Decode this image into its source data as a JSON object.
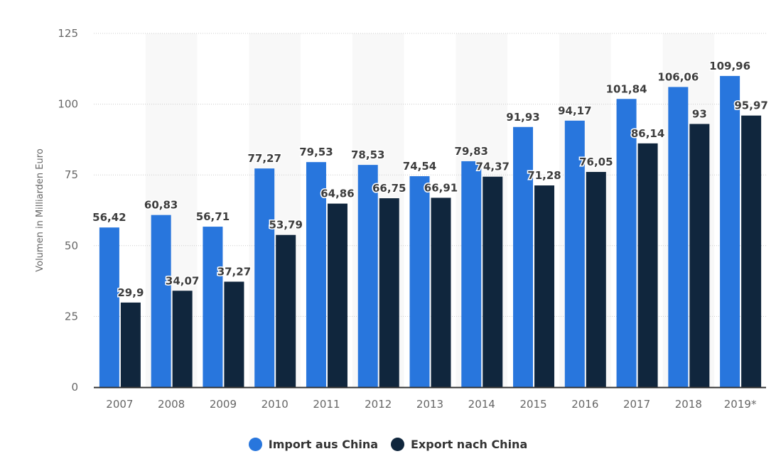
{
  "chart_data": {
    "type": "bar",
    "title": "",
    "xlabel": "",
    "ylabel": "Volumen in Milliarden Euro",
    "ylim": [
      0,
      125
    ],
    "yticks": [
      0,
      25,
      50,
      75,
      100,
      125
    ],
    "grid": true,
    "legend_position": "bottom",
    "categories": [
      "2007",
      "2008",
      "2009",
      "2010",
      "2011",
      "2012",
      "2013",
      "2014",
      "2015",
      "2016",
      "2017",
      "2018",
      "2019*"
    ],
    "series": [
      {
        "name": "Import aus China",
        "color": "#2876dd",
        "values": [
          56.42,
          60.83,
          56.71,
          77.27,
          79.53,
          78.53,
          74.54,
          79.83,
          91.93,
          94.17,
          101.84,
          106.06,
          109.96
        ],
        "labels": [
          "56,42",
          "60,83",
          "56,71",
          "77,27",
          "79,53",
          "78,53",
          "74,54",
          "79,83",
          "91,93",
          "94,17",
          "101,84",
          "106,06",
          "109,96"
        ]
      },
      {
        "name": "Export nach China",
        "color": "#10263d",
        "values": [
          29.9,
          34.07,
          37.27,
          53.79,
          64.86,
          66.75,
          66.91,
          74.37,
          71.28,
          76.05,
          86.14,
          93,
          95.97
        ],
        "labels": [
          "29,9",
          "34,07",
          "37,27",
          "53,79",
          "64,86",
          "66,75",
          "66,91",
          "74,37",
          "71,28",
          "76,05",
          "86,14",
          "93",
          "95,97"
        ]
      }
    ]
  },
  "legend": {
    "items": [
      {
        "label": "Import aus China",
        "color": "#2876dd"
      },
      {
        "label": "Export nach China",
        "color": "#10263d"
      }
    ]
  }
}
